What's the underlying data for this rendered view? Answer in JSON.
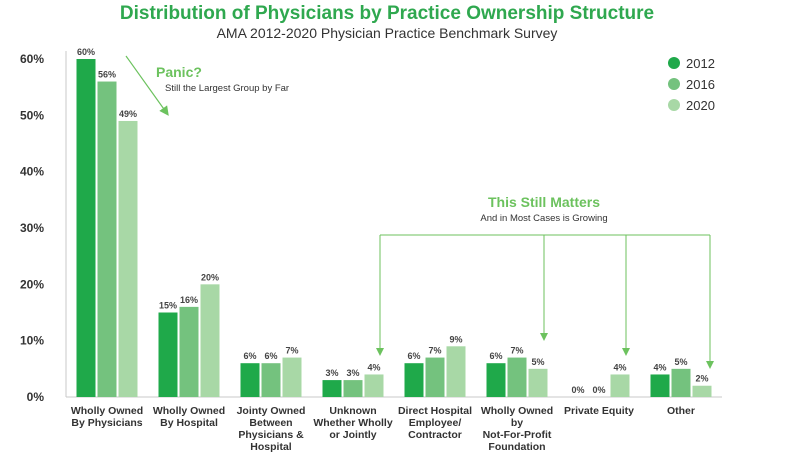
{
  "chart_data": {
    "type": "bar",
    "title": "Distribution of Physicians by Practice Ownership Structure",
    "subtitle": "AMA 2012-2020 Physician Practice Benchmark  Survey",
    "ylim": [
      0,
      60
    ],
    "yticks": [
      "0%",
      "10%",
      "20%",
      "30%",
      "40%",
      "50%",
      "60%"
    ],
    "categories": [
      [
        "Wholly Owned",
        "By Physicians"
      ],
      [
        "Wholly Owned",
        "By Hospital"
      ],
      [
        "Jointy Owned",
        "Between",
        "Physicians &",
        "Hospital"
      ],
      [
        "Unknown",
        "Whether Wholly",
        "or Jointly"
      ],
      [
        "Direct Hospital",
        "Employee/",
        "Contractor"
      ],
      [
        "Wholly Owned",
        "by",
        "Not-For-Profit",
        "Foundation"
      ],
      [
        "Private Equity"
      ],
      [
        "Other"
      ]
    ],
    "series": [
      {
        "name": "2012",
        "color": "#1fa94a",
        "values": [
          60,
          15,
          6,
          3,
          6,
          6,
          0,
          4
        ],
        "labels": [
          "60%",
          "15%",
          "6%",
          "3%",
          "6%",
          "6%",
          "0%",
          "4%"
        ]
      },
      {
        "name": "2016",
        "color": "#74c27e",
        "values": [
          56,
          16,
          6,
          3,
          7,
          7,
          0,
          5
        ],
        "labels": [
          "56%",
          "16%",
          "6%",
          "3%",
          "7%",
          "7%",
          "0%",
          "5%"
        ]
      },
      {
        "name": "2020",
        "color": "#a8d8a6",
        "values": [
          49,
          20,
          7,
          4,
          9,
          5,
          4,
          2
        ],
        "labels": [
          "49%",
          "20%",
          "7%",
          "4%",
          "9%",
          "5%",
          "4%",
          "2%"
        ]
      }
    ],
    "legend_position": "top-right",
    "annotations": [
      {
        "title": "Panic?",
        "text": "Still the Largest Group by Far"
      },
      {
        "title": "This Still Matters",
        "text": "And in Most Cases is Growing"
      }
    ]
  },
  "colors": {
    "title": "#2fa84f",
    "annotation": "#6cc25e",
    "axis": "#c8c8c8"
  }
}
